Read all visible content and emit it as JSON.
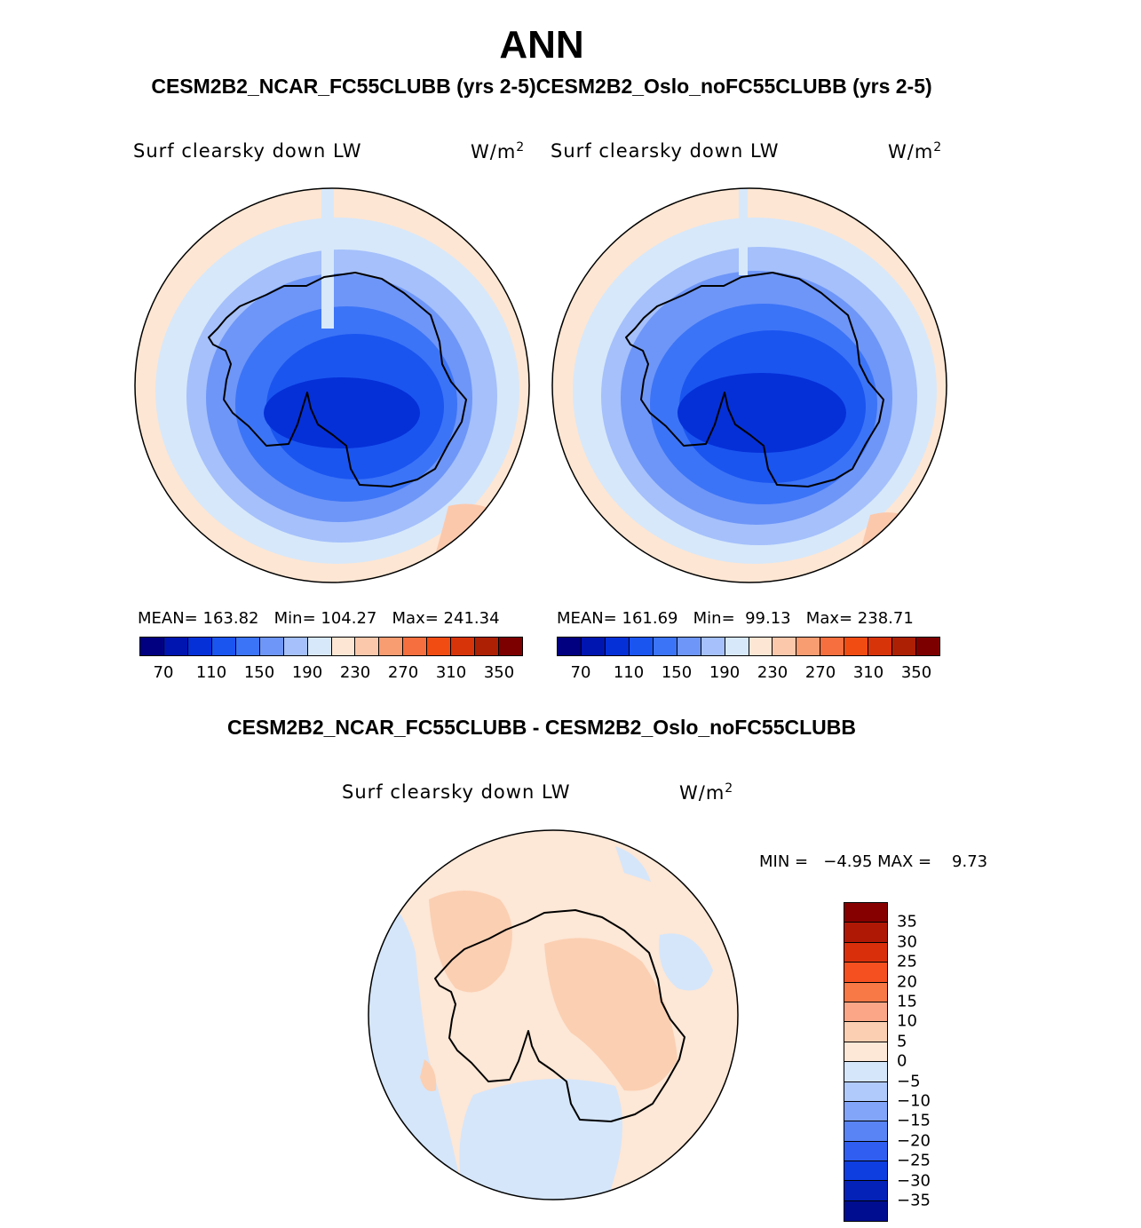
{
  "title": "ANN",
  "subtitle": "CESM2B2_NCAR_FC55CLUBB (yrs 2-5)CESM2B2_Oslo_noFC55CLUBB (yrs 2-5)",
  "panels": [
    {
      "variable": "Surf clearsky down LW",
      "units_base": "W/m",
      "units_exp": "2",
      "stats": "MEAN= 163.82   Min= 104.27   Max= 241.34",
      "map_label": "CESM2B2_NCAR_FC55CLUBB"
    },
    {
      "variable": "Surf clearsky down LW",
      "units_base": "W/m",
      "units_exp": "2",
      "stats": "MEAN= 161.69   Min=  99.13   Max= 238.71",
      "map_label": "CESM2B2_Oslo_noFC55CLUBB"
    }
  ],
  "colorbar": {
    "colors": [
      "#000080",
      "#0015b0",
      "#0530d8",
      "#1a55f0",
      "#3c74f7",
      "#6e96f8",
      "#a5c0fb",
      "#d7e8fa",
      "#fde6d3",
      "#fbc8ac",
      "#f89c72",
      "#f66f3e",
      "#f14c12",
      "#d8340a",
      "#ad2004",
      "#7d0000"
    ],
    "tick_labels": [
      "70",
      "110",
      "150",
      "190",
      "230",
      "270",
      "310",
      "350"
    ]
  },
  "difference": {
    "title": "CESM2B2_NCAR_FC55CLUBB - CESM2B2_Oslo_noFC55CLUBB",
    "variable": "Surf clearsky down LW",
    "units_base": "W/m",
    "units_exp": "2",
    "minmax": "MIN =   −4.95 MAX =    9.73",
    "colorbar": {
      "colors": [
        "#870000",
        "#b01806",
        "#d9300b",
        "#f45020",
        "#f87846",
        "#fba787",
        "#fbcfb2",
        "#fde7d6",
        "#d5e6fa",
        "#b0cbfb",
        "#82a5f9",
        "#5884f5",
        "#2f5ef0",
        "#0e3ee0",
        "#0522b8",
        "#000d90"
      ],
      "labels": [
        "35",
        "30",
        "25",
        "20",
        "15",
        "10",
        "5",
        "0",
        "−5",
        "−10",
        "−15",
        "−20",
        "−25",
        "−30",
        "−35"
      ]
    }
  },
  "map_theme": {
    "ocean_outer": "#fde6d3",
    "level_1": "#d7e8fa",
    "level_2": "#a5c0fb",
    "level_3": "#6e96f8",
    "level_4": "#3c74f7",
    "level_5": "#1a55f0",
    "level_6": "#0530d8",
    "warm_patch": "#fbc8ac",
    "diff_base": "#fde7d6",
    "diff_pos": "#fbcfb2",
    "diff_neg": "#d5e6fa"
  }
}
